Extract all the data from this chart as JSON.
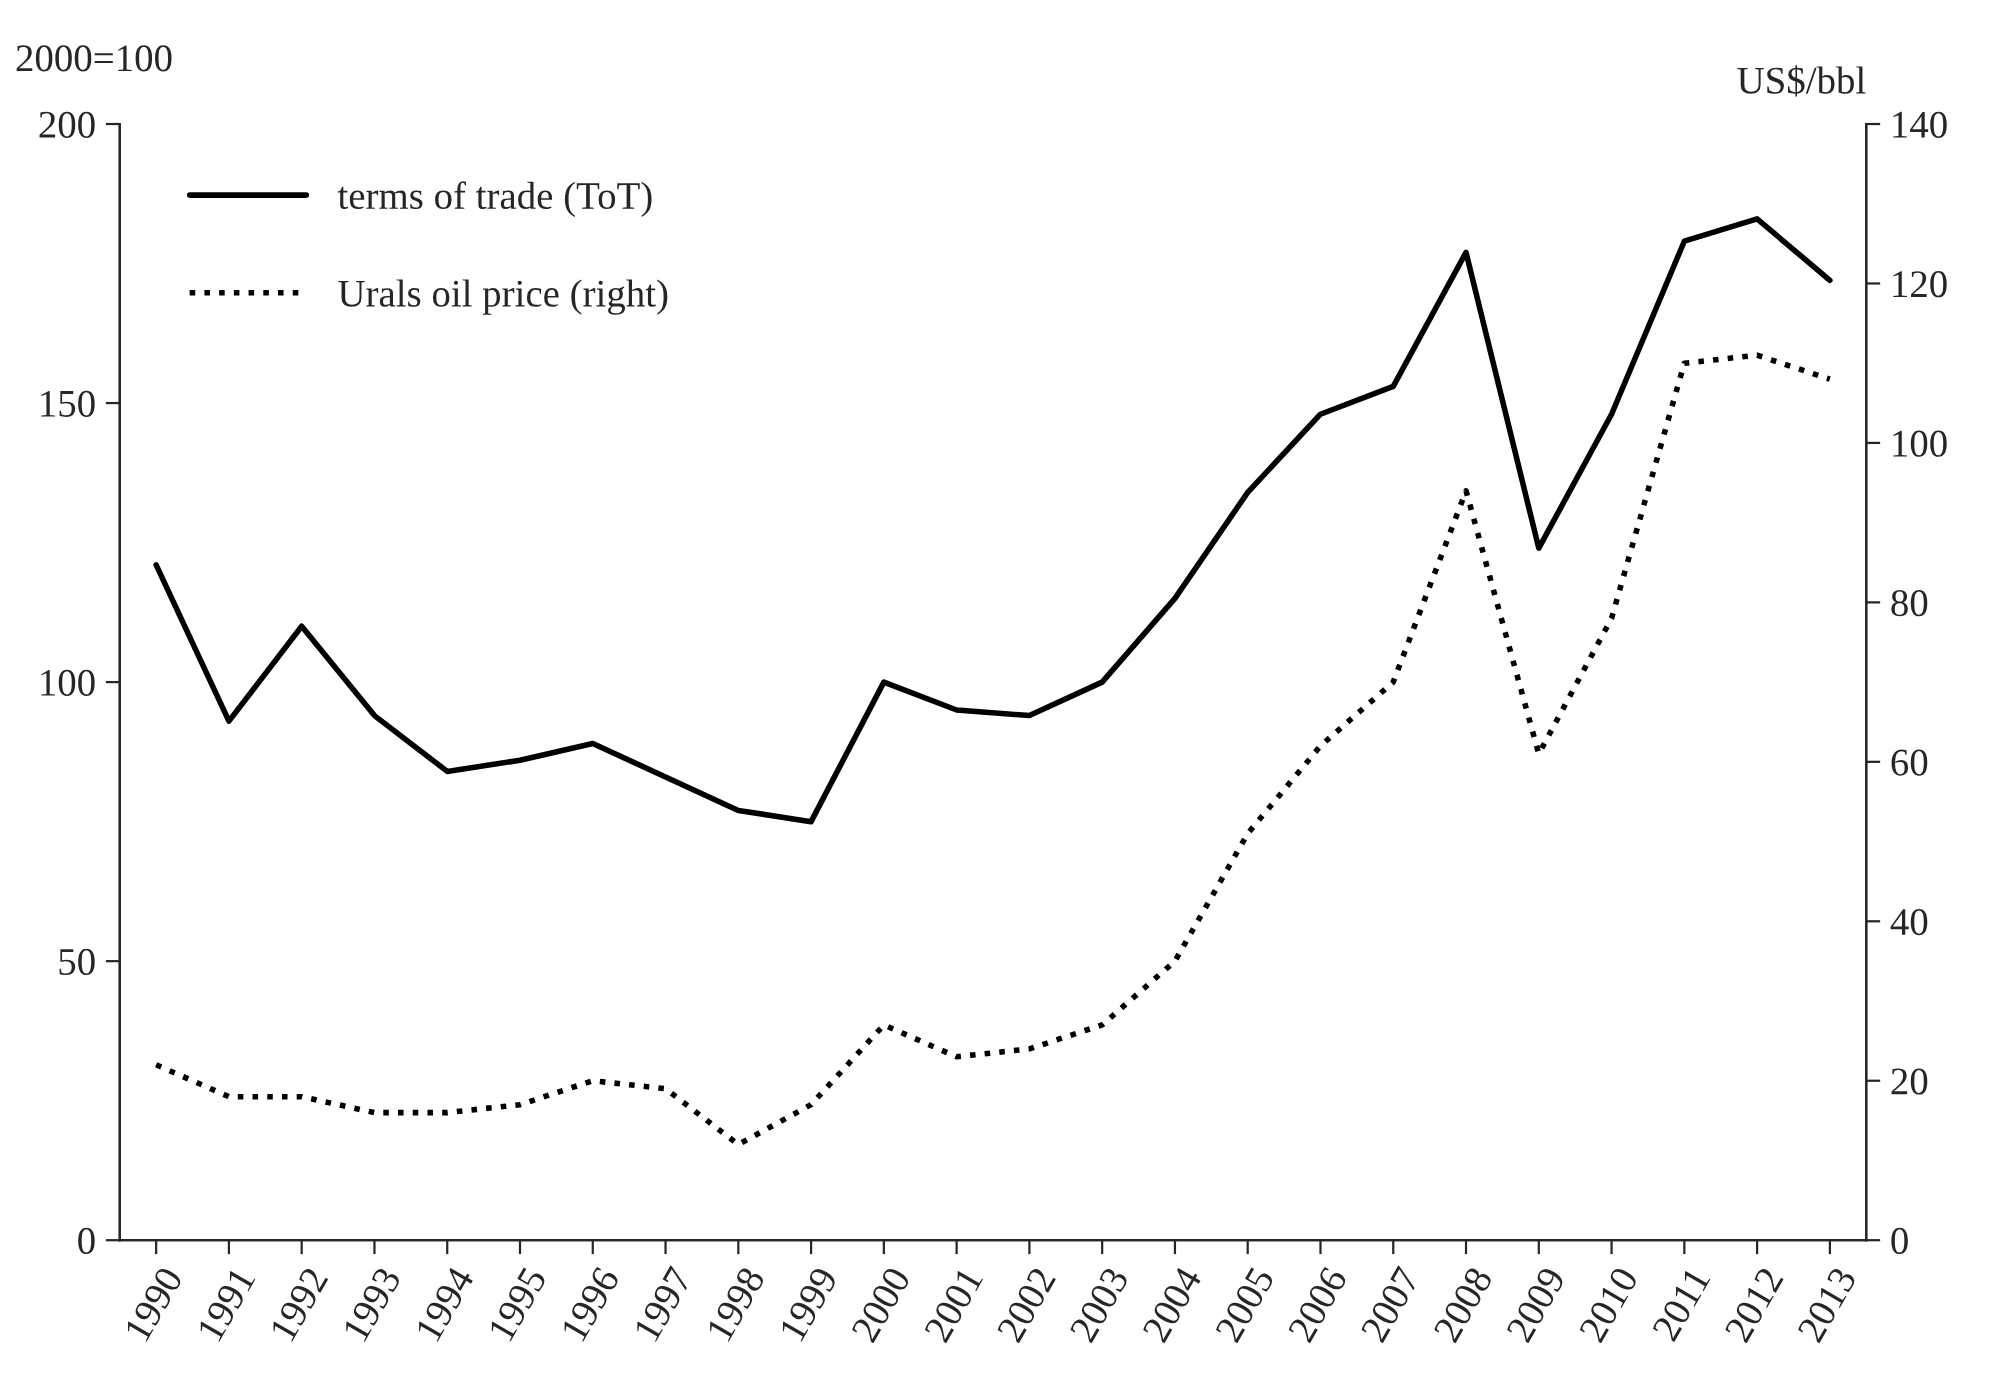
{
  "chart_data": {
    "type": "line",
    "categories": [
      "1990",
      "1991",
      "1992",
      "1993",
      "1994",
      "1995",
      "1996",
      "1997",
      "1998",
      "1999",
      "2000",
      "2001",
      "2002",
      "2003",
      "2004",
      "2005",
      "2006",
      "2007",
      "2008",
      "2009",
      "2010",
      "2011",
      "2012",
      "2013"
    ],
    "series": [
      {
        "name": "terms of trade (ToT)",
        "color": "#000000",
        "line_style": "solid",
        "values": [
          121,
          93,
          110,
          94,
          84,
          86,
          89,
          83,
          77,
          75,
          100,
          95,
          94,
          100,
          115,
          134,
          148,
          153,
          177,
          124,
          148,
          179,
          183,
          172
        ]
      },
      {
        "name": "Urals oil price (right)",
        "color": "#000000",
        "line_style": "dotted",
        "axis": "y2",
        "values": [
          22,
          18,
          18,
          16,
          16,
          17,
          20,
          19,
          12,
          17,
          27,
          23,
          24,
          27,
          35,
          51,
          62,
          70,
          94,
          61,
          78,
          110,
          111,
          108
        ]
      }
    ],
    "ylabel": "2000=100",
    "y2label": "US$/bbl",
    "ylim": [
      0,
      200
    ],
    "yticks": [
      0,
      50,
      100,
      150,
      200
    ],
    "y2lim": [
      0,
      140
    ],
    "y2ticks": [
      0,
      20,
      40,
      60,
      80,
      100,
      120,
      140
    ],
    "legend": "top left",
    "grid": false,
    "marker": "none"
  }
}
